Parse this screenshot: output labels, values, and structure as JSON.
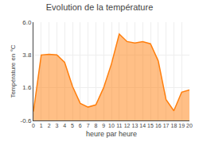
{
  "chart_data": {
    "type": "area",
    "title": "Evolution de la température",
    "xlabel": "heure par heure",
    "ylabel": "Température en °C",
    "x": [
      0,
      1,
      2,
      3,
      4,
      5,
      6,
      7,
      8,
      9,
      10,
      11,
      12,
      13,
      14,
      15,
      16,
      17,
      18,
      19,
      20
    ],
    "values": [
      0.0,
      3.8,
      3.85,
      3.8,
      3.3,
      1.7,
      0.55,
      0.3,
      0.45,
      1.6,
      3.2,
      5.2,
      4.7,
      4.6,
      4.7,
      4.55,
      3.4,
      0.8,
      0.05,
      1.3,
      1.45
    ],
    "xlim": [
      0,
      20
    ],
    "xticks": [
      0,
      1,
      2,
      3,
      4,
      5,
      6,
      7,
      8,
      9,
      10,
      11,
      12,
      13,
      14,
      15,
      16,
      17,
      18,
      19,
      20
    ],
    "ylim": [
      -0.6,
      6.0
    ],
    "yticks": [
      -0.6,
      1.6,
      3.8,
      {
        "value": 6.0,
        "label": "6.0"
      }
    ],
    "grid": true
  }
}
